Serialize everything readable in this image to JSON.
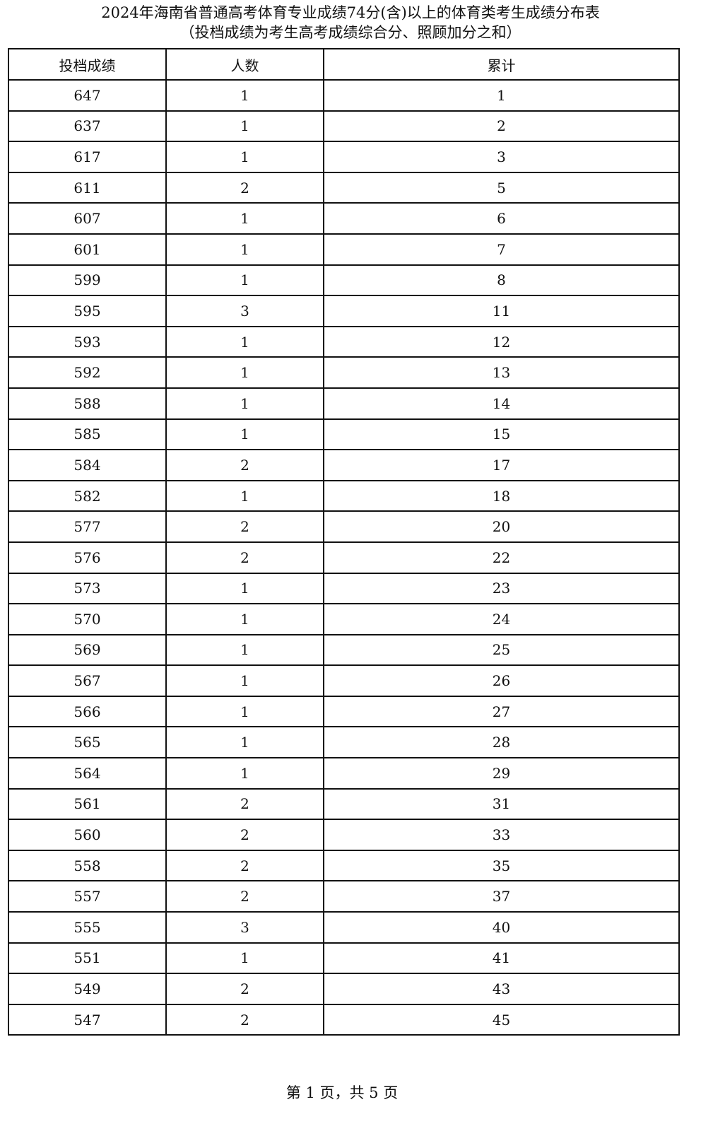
{
  "title": "2024年海南省普通高考体育专业成绩74分(含)以上的体育类考生成绩分布表",
  "subtitle": "（投档成绩为考生高考成绩综合分、照顾加分之和）",
  "table": {
    "headers": [
      "投档成绩",
      "人数",
      "累计"
    ],
    "rows": [
      [
        "647",
        "1",
        "1"
      ],
      [
        "637",
        "1",
        "2"
      ],
      [
        "617",
        "1",
        "3"
      ],
      [
        "611",
        "2",
        "5"
      ],
      [
        "607",
        "1",
        "6"
      ],
      [
        "601",
        "1",
        "7"
      ],
      [
        "599",
        "1",
        "8"
      ],
      [
        "595",
        "3",
        "11"
      ],
      [
        "593",
        "1",
        "12"
      ],
      [
        "592",
        "1",
        "13"
      ],
      [
        "588",
        "1",
        "14"
      ],
      [
        "585",
        "1",
        "15"
      ],
      [
        "584",
        "2",
        "17"
      ],
      [
        "582",
        "1",
        "18"
      ],
      [
        "577",
        "2",
        "20"
      ],
      [
        "576",
        "2",
        "22"
      ],
      [
        "573",
        "1",
        "23"
      ],
      [
        "570",
        "1",
        "24"
      ],
      [
        "569",
        "1",
        "25"
      ],
      [
        "567",
        "1",
        "26"
      ],
      [
        "566",
        "1",
        "27"
      ],
      [
        "565",
        "1",
        "28"
      ],
      [
        "564",
        "1",
        "29"
      ],
      [
        "561",
        "2",
        "31"
      ],
      [
        "560",
        "2",
        "33"
      ],
      [
        "558",
        "2",
        "35"
      ],
      [
        "557",
        "2",
        "37"
      ],
      [
        "555",
        "3",
        "40"
      ],
      [
        "551",
        "1",
        "41"
      ],
      [
        "549",
        "2",
        "43"
      ],
      [
        "547",
        "2",
        "45"
      ]
    ]
  },
  "footer": "第 1 页，共 5 页"
}
